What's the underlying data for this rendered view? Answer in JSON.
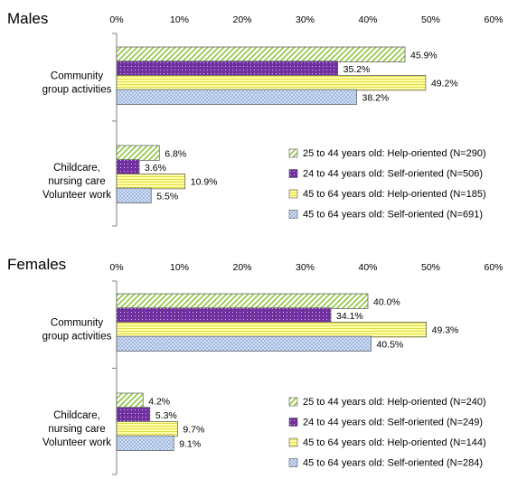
{
  "chart_data": [
    {
      "type": "bar",
      "orientation": "horizontal",
      "title": "Males",
      "xlim": [
        0,
        60
      ],
      "ticks": [
        "0%",
        "10%",
        "20%",
        "30%",
        "40%",
        "50%",
        "60%"
      ],
      "tick_values": [
        0,
        10,
        20,
        30,
        40,
        50,
        60
      ],
      "grid": false,
      "legend_position": "right",
      "categories": [
        [
          "Community",
          "group activities"
        ],
        [
          "Childcare,",
          "nursing care",
          "Volunteer work"
        ]
      ],
      "series": [
        {
          "name": "25 to 44 years old: Help-oriented (N=290)",
          "pattern": "diag",
          "values": [
            45.9,
            6.8
          ],
          "labels": [
            "45.9%",
            "6.8%"
          ]
        },
        {
          "name": "24 to 44 years old: Self-oriented (N=506)",
          "pattern": "dots",
          "values": [
            35.2,
            3.6
          ],
          "labels": [
            "35.2%",
            "3.6%"
          ]
        },
        {
          "name": "45 to 64 years old: Help-oriented (N=185)",
          "pattern": "hlines",
          "values": [
            49.2,
            10.9
          ],
          "labels": [
            "49.2%",
            "10.9%"
          ]
        },
        {
          "name": "45 to 64 years old: Self-oriented (N=691)",
          "pattern": "checker",
          "values": [
            38.2,
            5.5
          ],
          "labels": [
            "38.2%",
            "5.5%"
          ]
        }
      ]
    },
    {
      "type": "bar",
      "orientation": "horizontal",
      "title": "Females",
      "xlim": [
        0,
        60
      ],
      "ticks": [
        "0%",
        "10%",
        "20%",
        "30%",
        "40%",
        "50%",
        "60%"
      ],
      "tick_values": [
        0,
        10,
        20,
        30,
        40,
        50,
        60
      ],
      "grid": false,
      "legend_position": "right",
      "categories": [
        [
          "Community",
          "group activities"
        ],
        [
          "Childcare,",
          "nursing care",
          "Volunteer work"
        ]
      ],
      "series": [
        {
          "name": "25 to 44 years old: Help-oriented (N=240)",
          "pattern": "diag",
          "values": [
            40.0,
            4.2
          ],
          "labels": [
            "40.0%",
            "4.2%"
          ]
        },
        {
          "name": "24 to 44 years old: Self-oriented (N=249)",
          "pattern": "dots",
          "values": [
            34.1,
            5.3
          ],
          "labels": [
            "34.1%",
            "5.3%"
          ]
        },
        {
          "name": "45 to 64 years old: Help-oriented (N=144)",
          "pattern": "hlines",
          "values": [
            49.3,
            9.7
          ],
          "labels": [
            "49.3%",
            "9.7%"
          ]
        },
        {
          "name": "45 to 64 years old: Self-oriented (N=284)",
          "pattern": "checker",
          "values": [
            40.5,
            9.1
          ],
          "labels": [
            "40.5%",
            "9.1%"
          ]
        }
      ]
    }
  ],
  "colors": {
    "diag_fg": "#8dc63f",
    "dots_bg": "#7030a0",
    "hlines_fg": "#e0dc4a",
    "hlines_bg": "#ffffa8",
    "checker_a": "#9fb8e0",
    "checker_b": "#d4e0f2",
    "axis": "#808080",
    "bar_stroke": "#555555"
  }
}
